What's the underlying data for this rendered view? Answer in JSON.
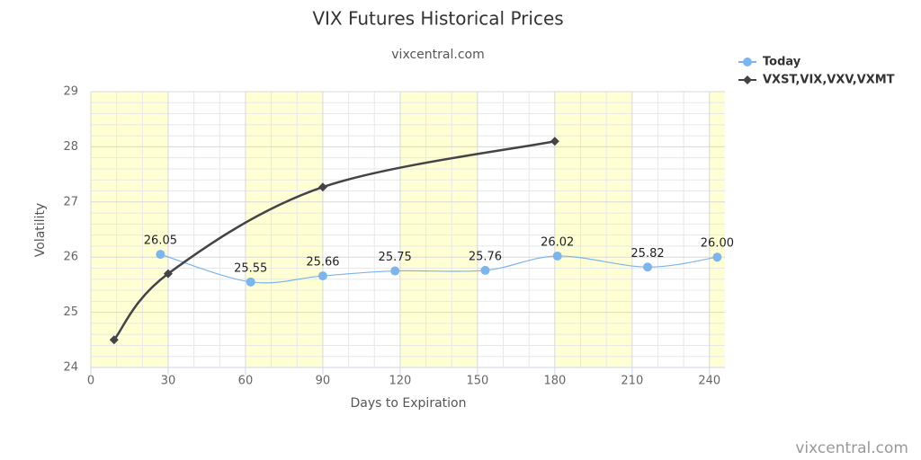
{
  "chart_data": {
    "type": "line",
    "title": "VIX Futures Historical Prices",
    "subtitle": "vixcentral.com",
    "credits": "vixcentral.com",
    "x_label": "Days to Expiration",
    "y_label": "Volatility",
    "xlim": [
      0,
      246
    ],
    "xticks": [
      0,
      30,
      60,
      90,
      120,
      150,
      180,
      210,
      240
    ],
    "ylim": [
      24,
      29
    ],
    "yticks": [
      24,
      25,
      26,
      27,
      28,
      29
    ],
    "grid": true,
    "legend": "top-right",
    "series": [
      {
        "name": "Today",
        "color": "#7cb5ec",
        "marker": "circle",
        "x": [
          27,
          62,
          90,
          118,
          153,
          181,
          216,
          243
        ],
        "values": [
          26.05,
          25.55,
          25.66,
          25.75,
          25.76,
          26.02,
          25.82,
          26.0
        ],
        "value_labels": [
          "26.05",
          "25.55",
          "25.66",
          "25.75",
          "25.76",
          "26.02",
          "25.82",
          "26.00"
        ]
      },
      {
        "name": "VXST,VIX,VXV,VXMT",
        "color": "#434348",
        "marker": "diamond",
        "x": [
          9,
          30,
          90,
          180
        ],
        "values": [
          24.5,
          25.7,
          27.27,
          28.1
        ]
      }
    ]
  }
}
